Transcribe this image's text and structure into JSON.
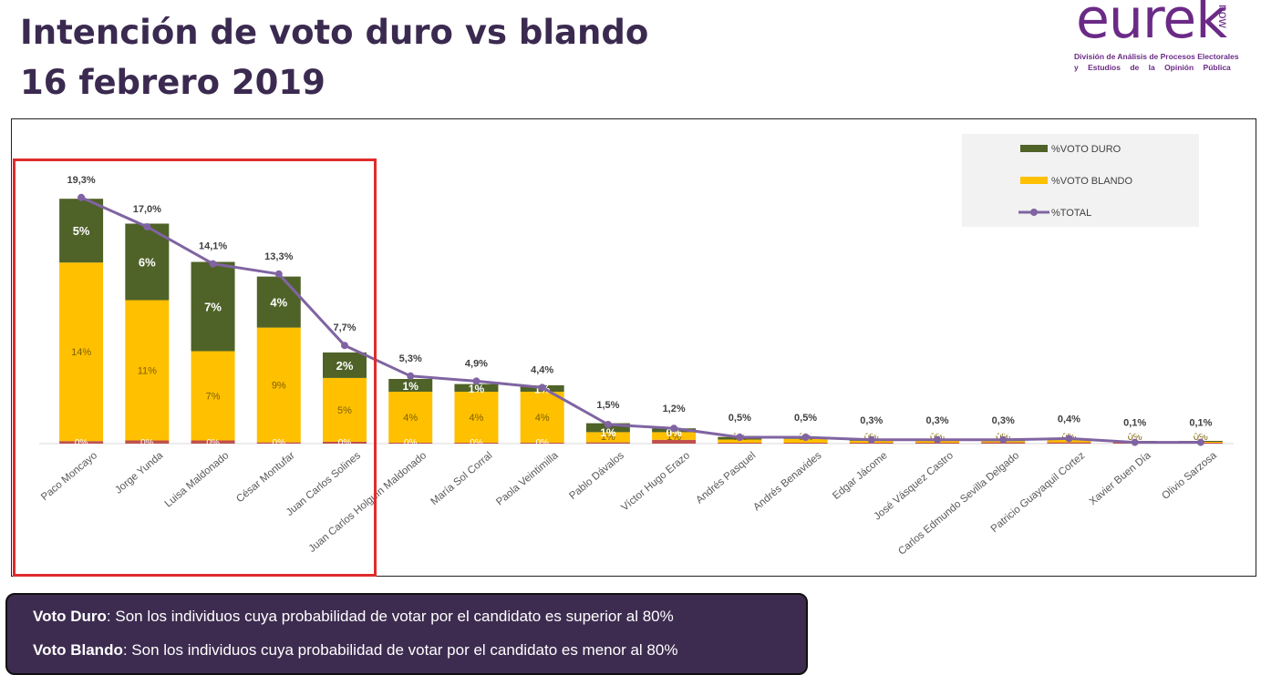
{
  "title_line1": "Intención de voto duro vs blando",
  "title_line2": "16 febrero 2019",
  "logo": {
    "word": "eurek",
    "now": "now",
    "line1": "División de Análisis de Procesos Electorales",
    "line2": "y Estudios de la Opinión Pública"
  },
  "definitions": [
    {
      "term": "Voto Duro",
      "text": ": Son los individuos cuya probabilidad de votar por el candidato es superior al 80%"
    },
    {
      "term": "Voto Blando",
      "text": ": Son los individuos cuya probabilidad de votar por el candidato es menor al 80%"
    }
  ],
  "colors": {
    "duro": "#4f6228",
    "blando": "#ffc000",
    "total": "#8064a2",
    "base": "#c0504d",
    "highlight": "#e02b2b"
  },
  "chart_data": {
    "type": "bar",
    "stacked": true,
    "categories": [
      "Paco Moncayo",
      "Jorge Yunda",
      "Luisa Maldonado",
      "César Montufar",
      "Juan Carlos Solines",
      "Juan Carlos Holguín Maldonado",
      "María Sol Corral",
      "Paola Veintimilla",
      "Pablo Dávalos",
      "Víctor Hugo Erazo",
      "Andrés Pasquel",
      "Andrés Benavides",
      "Edgar Jácome",
      "José Vásquez Castro",
      "Carlos Edmundo Sevilla Delgado",
      "Patricio Guayaquil Cortez",
      "Xavier Buen Día",
      "Olivio Sarzosa"
    ],
    "series": [
      {
        "name": "%VOTO DURO",
        "kind": "bar",
        "values": [
          5,
          6,
          7,
          4,
          2,
          1,
          0.6,
          0.5,
          0.7,
          0.3,
          0.2,
          0.15,
          0.1,
          0.1,
          0.1,
          0.1,
          0.03,
          0.03
        ],
        "labels": [
          "5%",
          "6%",
          "7%",
          "4%",
          "2%",
          "1%",
          "1%",
          "1%",
          "1%",
          "0%",
          "0%",
          "0%",
          "0%",
          "0%",
          "0%",
          "0%",
          "0%",
          "0%"
        ]
      },
      {
        "name": "%VOTO BLANDO",
        "kind": "bar",
        "values": [
          14,
          11,
          7,
          9,
          5,
          4,
          4,
          4,
          0.8,
          0.6,
          0.25,
          0.3,
          0.15,
          0.15,
          0.1,
          0.2,
          0.05,
          0.05
        ],
        "labels": [
          "14%",
          "11%",
          "7%",
          "9%",
          "5%",
          "4%",
          "4%",
          "4%",
          "1%",
          "1%",
          "0%",
          "0%",
          "0%",
          "0%",
          "0%",
          "0%",
          "0%",
          "0%"
        ]
      },
      {
        "name": "",
        "kind": "base",
        "values": [
          0.2,
          0.25,
          0.25,
          0.1,
          0.15,
          0.05,
          0.05,
          0.05,
          0.1,
          0.3,
          0.05,
          0.05,
          0.05,
          0.05,
          0.1,
          0.1,
          0.02,
          0.02
        ],
        "labels": [
          "0%",
          "0%",
          "0%",
          "0%",
          "0%",
          "0%",
          "0%",
          "0%",
          "",
          "",
          "",
          "",
          "",
          "",
          "",
          "",
          "",
          ""
        ]
      },
      {
        "name": "%TOTAL",
        "kind": "line",
        "values": [
          19.3,
          17.0,
          14.1,
          13.3,
          7.7,
          5.3,
          4.9,
          4.4,
          1.5,
          1.2,
          0.5,
          0.5,
          0.3,
          0.3,
          0.3,
          0.4,
          0.1,
          0.1
        ],
        "labels": [
          "19,3%",
          "17,0%",
          "14,1%",
          "13,3%",
          "7,7%",
          "5,3%",
          "4,9%",
          "4,4%",
          "1,5%",
          "1,2%",
          "0,5%",
          "0,5%",
          "0,3%",
          "0,3%",
          "0,3%",
          "0,4%",
          "0,1%",
          "0,1%"
        ]
      }
    ],
    "ylim": [
      0,
      20
    ],
    "grid": false,
    "legend": "top-right",
    "highlighted_categories": [
      "Paco Moncayo",
      "Jorge Yunda",
      "Luisa Maldonado",
      "César Montufar",
      "Juan Carlos Solines"
    ]
  }
}
